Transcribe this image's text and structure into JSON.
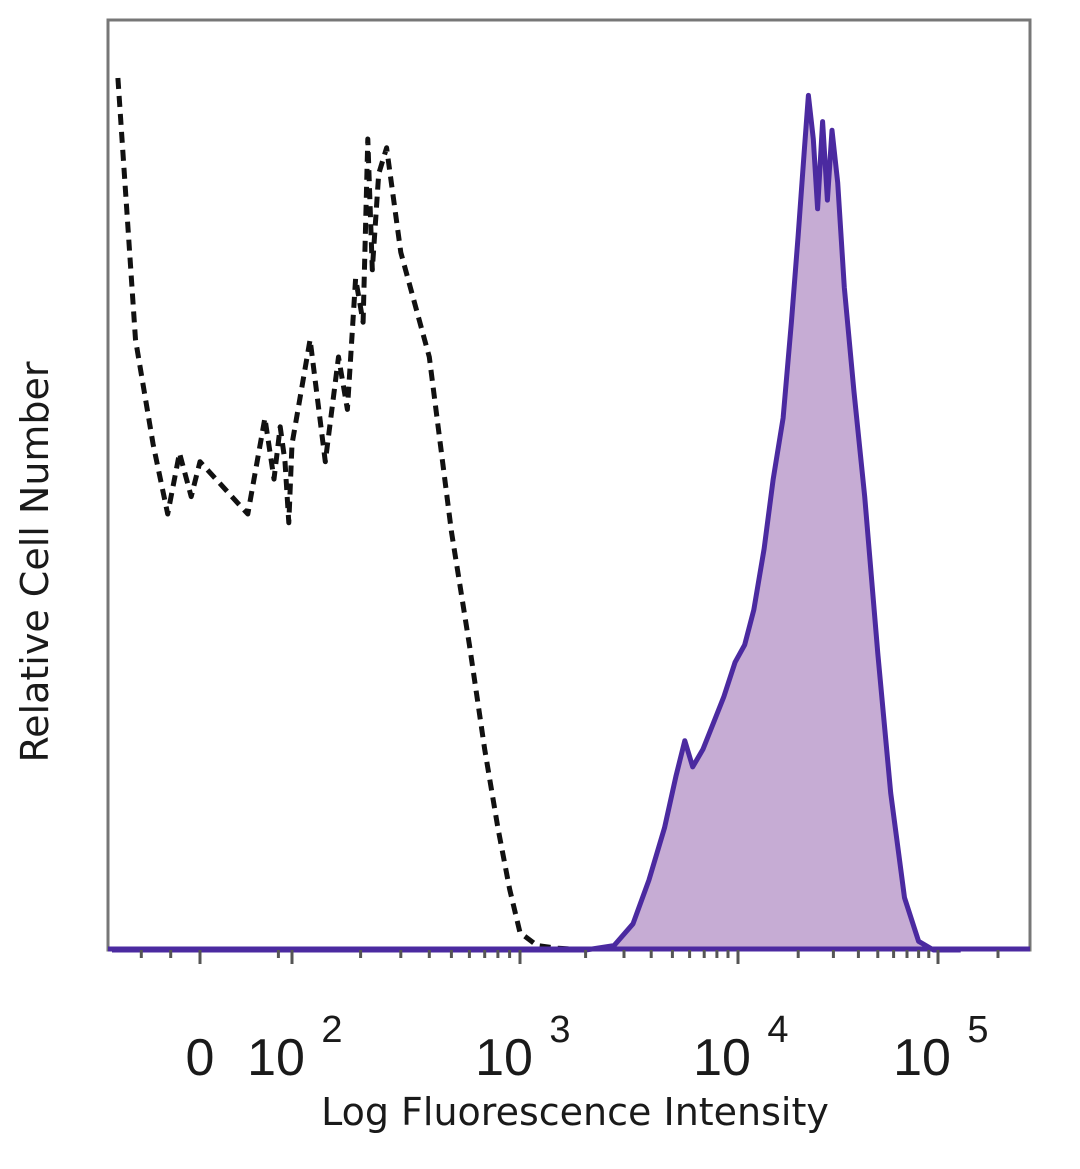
{
  "chart_data": {
    "type": "area",
    "xlabel": "Log Fluorescence Intensity",
    "ylabel": "Relative Cell Number",
    "x_scale": "biexponential",
    "ylim": [
      0,
      100
    ],
    "grid": false,
    "x_ticks": [
      {
        "value": 0,
        "base": "0",
        "exp": ""
      },
      {
        "value": 100,
        "base": "10",
        "exp": "2"
      },
      {
        "value": 1000,
        "base": "10",
        "exp": "3"
      },
      {
        "value": 10000,
        "base": "10",
        "exp": "4"
      },
      {
        "value": 100000,
        "base": "10",
        "exp": "5"
      }
    ],
    "series": [
      {
        "style": "dashed",
        "color": "#111111",
        "fill": "none",
        "x": [
          -140,
          -110,
          -80,
          -55,
          -35,
          -15,
          0,
          10,
          25,
          40,
          55,
          70,
          85,
          100,
          120,
          140,
          160,
          175,
          190,
          205,
          215,
          225,
          240,
          260,
          300,
          400,
          500,
          600,
          700,
          800,
          900,
          1000,
          1200,
          1500,
          2000
        ],
        "y": [
          100,
          70,
          58,
          50,
          57,
          52,
          56,
          50,
          61,
          54,
          60,
          56,
          49,
          58,
          70,
          56,
          68,
          62,
          77,
          72,
          93,
          78,
          89,
          92,
          80,
          68,
          48,
          35,
          23,
          14,
          7,
          2,
          0.5,
          0.2,
          0
        ]
      },
      {
        "style": "solid",
        "color": "#4b2aa0",
        "fill": "#c6acd4",
        "x": [
          -150,
          1000,
          2000,
          2700,
          3300,
          3900,
          4600,
          5200,
          5700,
          6200,
          6900,
          7700,
          8600,
          9700,
          10800,
          12000,
          13500,
          15000,
          16800,
          18500,
          20000,
          21500,
          22500,
          23800,
          25000,
          26500,
          28000,
          29500,
          31500,
          34000,
          38000,
          43000,
          50000,
          58000,
          68000,
          80000,
          95000,
          130000
        ],
        "y": [
          0,
          0,
          0,
          0.5,
          3,
          8,
          14,
          20,
          24,
          21,
          23,
          26,
          29,
          33,
          35,
          39,
          46,
          54,
          61,
          72,
          82,
          92,
          98,
          93,
          85,
          95,
          86,
          94,
          88,
          76,
          64,
          52,
          34,
          18,
          6,
          1,
          0,
          0
        ]
      }
    ]
  }
}
